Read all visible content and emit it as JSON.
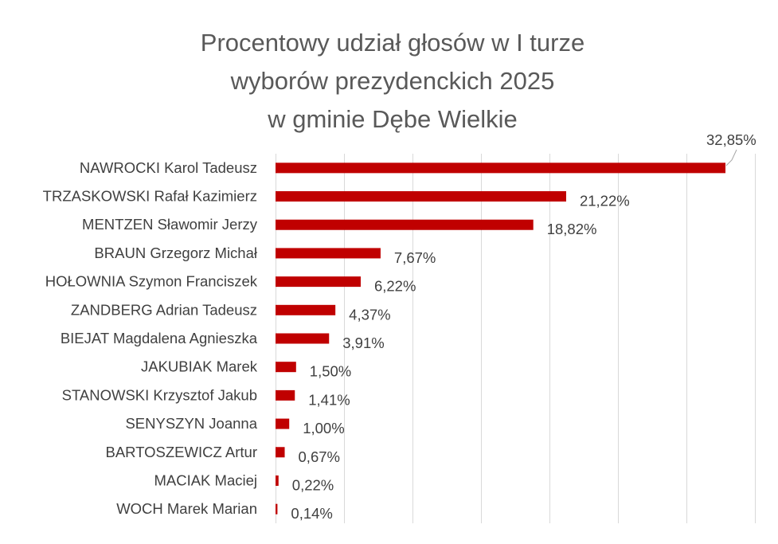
{
  "chart_data": {
    "type": "bar",
    "orientation": "horizontal",
    "title_lines": [
      "Procentowy udział głosów w I turze",
      "wyborów prezydenckich 2025",
      "w gminie Dębe Wielkie"
    ],
    "categories": [
      "NAWROCKI Karol Tadeusz",
      "TRZASKOWSKI Rafał Kazimierz",
      "MENTZEN Sławomir Jerzy",
      "BRAUN Grzegorz Michał",
      "HOŁOWNIA Szymon Franciszek",
      "ZANDBERG Adrian Tadeusz",
      "BIEJAT Magdalena Agnieszka",
      "JAKUBIAK Marek",
      "STANOWSKI Krzysztof Jakub",
      "SENYSZYN Joanna",
      "BARTOSZEWICZ Artur",
      "MACIAK Maciej",
      "WOCH Marek Marian"
    ],
    "values": [
      32.85,
      21.22,
      18.82,
      7.67,
      6.22,
      4.37,
      3.91,
      1.5,
      1.41,
      1.0,
      0.67,
      0.22,
      0.14
    ],
    "data_labels": [
      "32,85%",
      "21,22%",
      "18,82%",
      "7,67%",
      "6,22%",
      "4,37%",
      "3,91%",
      "1,50%",
      "1,41%",
      "1,00%",
      "0,67%",
      "0,22%",
      "0,14%"
    ],
    "xlim": [
      0,
      35
    ],
    "x_gridlines": [
      0,
      5,
      10,
      15,
      20,
      25,
      30,
      35
    ],
    "grid": true,
    "bar_color": "#c00000",
    "legend": "none"
  }
}
